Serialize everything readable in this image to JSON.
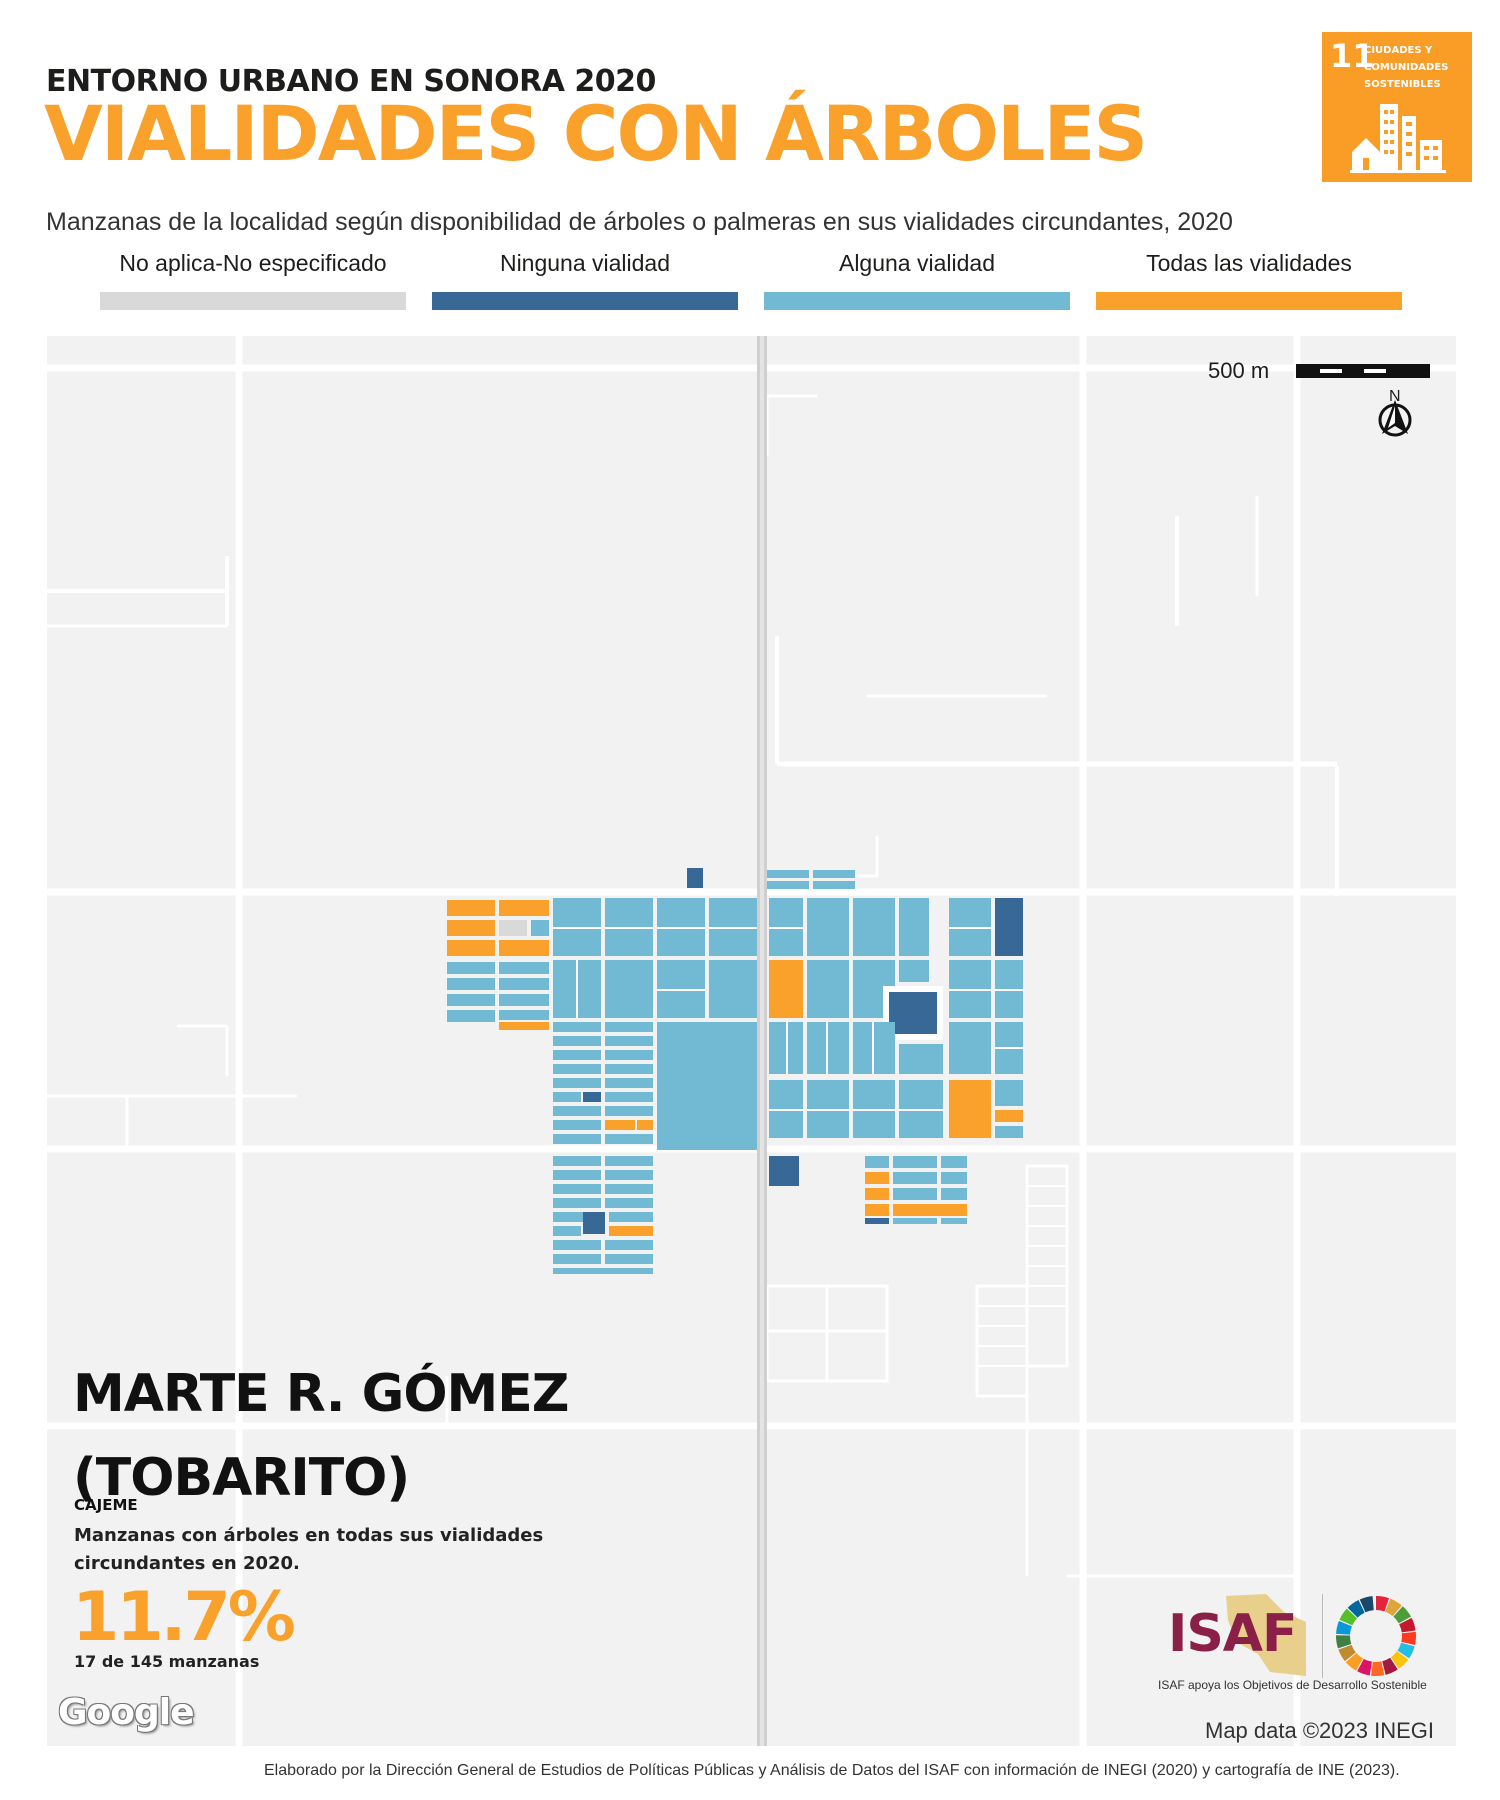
{
  "header": {
    "supertitle": "ENTORNO URBANO EN SONORA 2020",
    "title": "VIALIDADES CON ÁRBOLES",
    "subtitle": "Manzanas de la localidad según disponibilidad de árboles o palmeras en sus vialidades circundantes, 2020"
  },
  "sdg_badge": {
    "number": "11",
    "text": "CIUDADES Y COMUNIDADES SOSTENIBLES",
    "color": "#f99d26"
  },
  "legend": [
    {
      "label": "No aplica-No especificado",
      "color": "#d9d9d9"
    },
    {
      "label": "Ninguna vialidad",
      "color": "#386896"
    },
    {
      "label": "Alguna vialidad",
      "color": "#72b9d4"
    },
    {
      "label": "Todas las vialidades",
      "color": "#f9a12a"
    }
  ],
  "map": {
    "scale_label": "500 m",
    "north_label": "N",
    "background_color": "#f2f2f2",
    "road_color": "#ffffff"
  },
  "locality": {
    "name": "MARTE R. GÓMEZ (TOBARITO)",
    "municipality": "CAJEME",
    "stat_caption": "Manzanas con árboles en todas sus vialidades circundantes en 2020.",
    "stat_value": "11.7%",
    "stat_count": "17 de 145 manzanas"
  },
  "logos": {
    "google": "Google",
    "isaf": "ISAF",
    "isaf_tagline": "ISAF apoya los Objetivos de Desarrollo Sostenible"
  },
  "credits": {
    "map_data": "Map data ©2023 INEGI",
    "footer": "Elaborado por la Dirección General de Estudios de Políticas Públicas y Análisis de Datos del ISAF con información de INEGI (2020) y cartografía de INE (2023)."
  }
}
